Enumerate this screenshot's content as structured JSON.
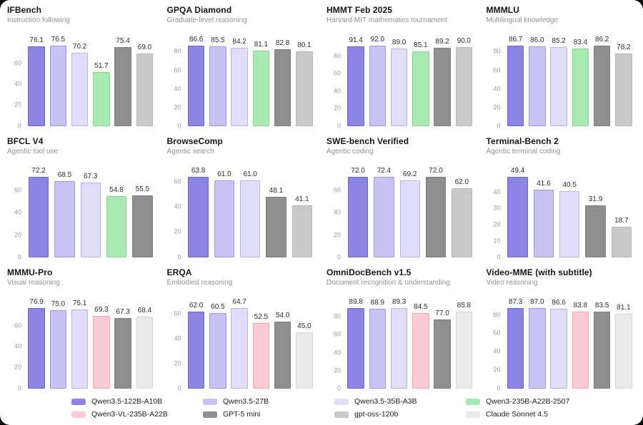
{
  "page": {
    "background": "#000000",
    "canvas_background": "#ffffff"
  },
  "palette": {
    "qwen35-122b": {
      "fill": "#8a84e3",
      "border": "#6f68d4"
    },
    "qwen35-27b": {
      "fill": "#c7c3f2",
      "border": "#9d96e9"
    },
    "qwen35-35b": {
      "fill": "#dfddf8",
      "border": "#b9b3ef"
    },
    "qwen3-2507": {
      "fill": "#a7e9b1",
      "border": "#83da93"
    },
    "qwen3-vl": {
      "fill": "#fbcad3",
      "border": "#f3a8b7"
    },
    "gpt5-mini": {
      "fill": "#8f8f8f",
      "border": "#7e7e7e"
    },
    "gpt-oss-120b": {
      "fill": "#c9c9c9",
      "border": "#b7b7b7"
    },
    "claude-sonnet": {
      "fill": "#eaeaea",
      "border": "#d6d6d6"
    }
  },
  "legend": {
    "items": [
      {
        "label": "Qwen3.5-122B-A10B",
        "color": "qwen35-122b"
      },
      {
        "label": "Qwen3.5-27B",
        "color": "qwen35-27b"
      },
      {
        "label": "Qwen3.5-35B-A3B",
        "color": "qwen35-35b"
      },
      {
        "label": "Qwen3-235B-A22B-2507",
        "color": "qwen3-2507"
      },
      {
        "label": "Qwen3-VL-235B-A22B",
        "color": "qwen3-vl"
      },
      {
        "label": "GPT-5 mini",
        "color": "gpt5-mini"
      },
      {
        "label": "gpt-oss-120b",
        "color": "gpt-oss-120b"
      },
      {
        "label": "Claude Sonnet 4.5",
        "color": "claude-sonnet"
      }
    ]
  },
  "chart_data": [
    {
      "type": "bar",
      "slug": "ifbench",
      "title": "IFBench",
      "subtitle": "Instruction following",
      "ylim": 83,
      "yticks": [
        "0",
        "20",
        "40",
        "60"
      ],
      "ytick_values": [
        0,
        20,
        40,
        60
      ],
      "bars": [
        {
          "model": "Qwen3.5-122B-A10B",
          "color": "qwen35-122b",
          "value": 76.1,
          "label": "76.1"
        },
        {
          "model": "Qwen3.5-27B",
          "color": "qwen35-27b",
          "value": 76.5,
          "label": "76.5"
        },
        {
          "model": "Qwen3.5-35B-A3B",
          "color": "qwen35-35b",
          "value": 70.2,
          "label": "70.2"
        },
        {
          "model": "Qwen3-235B-A22B-2507",
          "color": "qwen3-2507",
          "value": 51.7,
          "label": "51.7"
        },
        {
          "model": "GPT-5 mini",
          "color": "gpt5-mini",
          "value": 75.4,
          "label": "75.4"
        },
        {
          "model": "gpt-oss-120b",
          "color": "gpt-oss-120b",
          "value": 69.0,
          "label": "69.0"
        }
      ]
    },
    {
      "type": "bar",
      "slug": "gpqa-diamond",
      "title": "GPQA Diamond",
      "subtitle": "Graduate-level reasoning",
      "ylim": 93.5,
      "yticks": [
        "0",
        "20",
        "40",
        "60",
        "80"
      ],
      "ytick_values": [
        0,
        20,
        40,
        60,
        80
      ],
      "bars": [
        {
          "model": "Qwen3.5-122B-A10B",
          "color": "qwen35-122b",
          "value": 86.6,
          "label": "86.6"
        },
        {
          "model": "Qwen3.5-27B",
          "color": "qwen35-27b",
          "value": 85.5,
          "label": "85.5"
        },
        {
          "model": "Qwen3.5-35B-A3B",
          "color": "qwen35-35b",
          "value": 84.2,
          "label": "84.2"
        },
        {
          "model": "Qwen3-235B-A22B-2507",
          "color": "qwen3-2507",
          "value": 81.1,
          "label": "81.1"
        },
        {
          "model": "GPT-5 mini",
          "color": "gpt5-mini",
          "value": 82.8,
          "label": "82.8"
        },
        {
          "model": "gpt-oss-120b",
          "color": "gpt-oss-120b",
          "value": 80.1,
          "label": "80.1"
        }
      ]
    },
    {
      "type": "bar",
      "slug": "hmmt-feb-2025",
      "title": "HMMT Feb 2025",
      "subtitle": "Harvard-MIT mathematics tournament",
      "ylim": 99.5,
      "yticks": [
        "0",
        "20",
        "40",
        "60",
        "80"
      ],
      "ytick_values": [
        0,
        20,
        40,
        60,
        80
      ],
      "bars": [
        {
          "model": "Qwen3.5-122B-A10B",
          "color": "qwen35-122b",
          "value": 91.4,
          "label": "91.4"
        },
        {
          "model": "Qwen3.5-27B",
          "color": "qwen35-27b",
          "value": 92.0,
          "label": "92.0"
        },
        {
          "model": "Qwen3.5-35B-A3B",
          "color": "qwen35-35b",
          "value": 89.0,
          "label": "89.0"
        },
        {
          "model": "Qwen3-235B-A22B-2507",
          "color": "qwen3-2507",
          "value": 85.1,
          "label": "85.1"
        },
        {
          "model": "GPT-5 mini",
          "color": "gpt5-mini",
          "value": 89.2,
          "label": "89.2"
        },
        {
          "model": "gpt-oss-120b",
          "color": "gpt-oss-120b",
          "value": 90.0,
          "label": "90.0"
        }
      ]
    },
    {
      "type": "bar",
      "slug": "mmmlu",
      "title": "MMMLU",
      "subtitle": "Multilingual knowledge",
      "ylim": 93.5,
      "yticks": [
        "0",
        "20",
        "40",
        "60",
        "80"
      ],
      "ytick_values": [
        0,
        20,
        40,
        60,
        80
      ],
      "bars": [
        {
          "model": "Qwen3.5-122B-A10B",
          "color": "qwen35-122b",
          "value": 86.7,
          "label": "86.7"
        },
        {
          "model": "Qwen3.5-27B",
          "color": "qwen35-27b",
          "value": 86.0,
          "label": "86.0"
        },
        {
          "model": "Qwen3.5-35B-A3B",
          "color": "qwen35-35b",
          "value": 85.2,
          "label": "85.2"
        },
        {
          "model": "Qwen3-235B-A22B-2507",
          "color": "qwen3-2507",
          "value": 83.4,
          "label": "83.4"
        },
        {
          "model": "GPT-5 mini",
          "color": "gpt5-mini",
          "value": 86.2,
          "label": "86.2"
        },
        {
          "model": "gpt-oss-120b",
          "color": "gpt-oss-120b",
          "value": 78.2,
          "label": "78.2"
        }
      ]
    },
    {
      "type": "bar",
      "slug": "bfcl-v4",
      "title": "BFCL V4",
      "subtitle": "Agentic tool use",
      "ylim": 78,
      "yticks": [
        "0",
        "20",
        "40",
        "60"
      ],
      "ytick_values": [
        0,
        20,
        40,
        60
      ],
      "bars": [
        {
          "model": "Qwen3.5-122B-A10B",
          "color": "qwen35-122b",
          "value": 72.2,
          "label": "72.2"
        },
        {
          "model": "Qwen3.5-27B",
          "color": "qwen35-27b",
          "value": 68.5,
          "label": "68.5"
        },
        {
          "model": "Qwen3.5-35B-A3B",
          "color": "qwen35-35b",
          "value": 67.3,
          "label": "67.3"
        },
        {
          "model": "Qwen3-235B-A22B-2507",
          "color": "qwen3-2507",
          "value": 54.8,
          "label": "54.8"
        },
        {
          "model": "GPT-5 mini",
          "color": "gpt5-mini",
          "value": 55.5,
          "label": "55.5"
        }
      ]
    },
    {
      "type": "bar",
      "slug": "browsecomp",
      "title": "BrowseComp",
      "subtitle": "Agentic search",
      "ylim": 69,
      "yticks": [
        "0",
        "20",
        "40",
        "60"
      ],
      "ytick_values": [
        0,
        20,
        40,
        60
      ],
      "bars": [
        {
          "model": "Qwen3.5-122B-A10B",
          "color": "qwen35-122b",
          "value": 63.8,
          "label": "63.8"
        },
        {
          "model": "Qwen3.5-27B",
          "color": "qwen35-27b",
          "value": 61.0,
          "label": "61.0"
        },
        {
          "model": "Qwen3.5-35B-A3B",
          "color": "qwen35-35b",
          "value": 61.0,
          "label": "61.0"
        },
        {
          "model": "GPT-5 mini",
          "color": "gpt5-mini",
          "value": 48.1,
          "label": "48.1"
        },
        {
          "model": "gpt-oss-120b",
          "color": "gpt-oss-120b",
          "value": 41.1,
          "label": "41.1"
        }
      ]
    },
    {
      "type": "bar",
      "slug": "swe-bench-verified",
      "title": "SWE-bench Verified",
      "subtitle": "Agentic coding",
      "ylim": 78.2,
      "yticks": [
        "0",
        "20",
        "40",
        "60"
      ],
      "ytick_values": [
        0,
        20,
        40,
        60
      ],
      "bars": [
        {
          "model": "Qwen3.5-122B-A10B",
          "color": "qwen35-122b",
          "value": 72.0,
          "label": "72.0"
        },
        {
          "model": "Qwen3.5-27B",
          "color": "qwen35-27b",
          "value": 72.4,
          "label": "72.4"
        },
        {
          "model": "Qwen3.5-35B-A3B",
          "color": "qwen35-35b",
          "value": 69.2,
          "label": "69.2"
        },
        {
          "model": "GPT-5 mini",
          "color": "gpt5-mini",
          "value": 72.0,
          "label": "72.0"
        },
        {
          "model": "gpt-oss-120b",
          "color": "gpt-oss-120b",
          "value": 62.0,
          "label": "62.0"
        }
      ]
    },
    {
      "type": "bar",
      "slug": "terminal-bench-2",
      "title": "Terminal-Bench 2",
      "subtitle": "Agentic terminal coding",
      "ylim": 53.5,
      "yticks": [
        "0",
        "10",
        "20",
        "30",
        "40"
      ],
      "ytick_values": [
        0,
        10,
        20,
        30,
        40
      ],
      "bars": [
        {
          "model": "Qwen3.5-122B-A10B",
          "color": "qwen35-122b",
          "value": 49.4,
          "label": "49.4"
        },
        {
          "model": "Qwen3.5-27B",
          "color": "qwen35-27b",
          "value": 41.6,
          "label": "41.6"
        },
        {
          "model": "Qwen3.5-35B-A3B",
          "color": "qwen35-35b",
          "value": 40.5,
          "label": "40.5"
        },
        {
          "model": "GPT-5 mini",
          "color": "gpt5-mini",
          "value": 31.9,
          "label": "31.9"
        },
        {
          "model": "gpt-oss-120b",
          "color": "gpt-oss-120b",
          "value": 18.7,
          "label": "18.7"
        }
      ]
    },
    {
      "type": "bar",
      "slug": "mmmu-pro",
      "title": "MMMU-Pro",
      "subtitle": "Visual reasoning",
      "ylim": 83,
      "yticks": [
        "0",
        "20",
        "40",
        "60"
      ],
      "ytick_values": [
        0,
        20,
        40,
        60
      ],
      "bars": [
        {
          "model": "Qwen3.5-122B-A10B",
          "color": "qwen35-122b",
          "value": 76.9,
          "label": "76.9"
        },
        {
          "model": "Qwen3.5-27B",
          "color": "qwen35-27b",
          "value": 75.0,
          "label": "75.0"
        },
        {
          "model": "Qwen3.5-35B-A3B",
          "color": "qwen35-35b",
          "value": 75.1,
          "label": "75.1"
        },
        {
          "model": "Qwen3-VL-235B-A22B",
          "color": "qwen3-vl",
          "value": 69.3,
          "label": "69.3"
        },
        {
          "model": "GPT-5 mini",
          "color": "gpt5-mini",
          "value": 67.3,
          "label": "67.3"
        },
        {
          "model": "Claude Sonnet 4.5",
          "color": "claude-sonnet",
          "value": 68.4,
          "label": "68.4"
        }
      ]
    },
    {
      "type": "bar",
      "slug": "erqa",
      "title": "ERQA",
      "subtitle": "Embodied reasoning",
      "ylim": 70,
      "yticks": [
        "0",
        "20",
        "40",
        "60"
      ],
      "ytick_values": [
        0,
        20,
        40,
        60
      ],
      "bars": [
        {
          "model": "Qwen3.5-122B-A10B",
          "color": "qwen35-122b",
          "value": 62.0,
          "label": "62.0"
        },
        {
          "model": "Qwen3.5-27B",
          "color": "qwen35-27b",
          "value": 60.5,
          "label": "60.5"
        },
        {
          "model": "Qwen3.5-35B-A3B",
          "color": "qwen35-35b",
          "value": 64.7,
          "label": "64.7"
        },
        {
          "model": "Qwen3-VL-235B-A22B",
          "color": "qwen3-vl",
          "value": 52.5,
          "label": "52.5"
        },
        {
          "model": "GPT-5 mini",
          "color": "gpt5-mini",
          "value": 54.0,
          "label": "54.0"
        },
        {
          "model": "Claude Sonnet 4.5",
          "color": "claude-sonnet",
          "value": 45.0,
          "label": "45.0"
        }
      ]
    },
    {
      "type": "bar",
      "slug": "omnidocbench-v1-5",
      "title": "OmniDocBench v1.5",
      "subtitle": "Document recognition & understanding",
      "ylim": 97,
      "yticks": [
        "0",
        "20",
        "40",
        "60",
        "80"
      ],
      "ytick_values": [
        0,
        20,
        40,
        60,
        80
      ],
      "bars": [
        {
          "model": "Qwen3.5-122B-A10B",
          "color": "qwen35-122b",
          "value": 89.8,
          "label": "89.8"
        },
        {
          "model": "Qwen3.5-27B",
          "color": "qwen35-27b",
          "value": 88.9,
          "label": "88.9"
        },
        {
          "model": "Qwen3.5-35B-A3B",
          "color": "qwen35-35b",
          "value": 89.3,
          "label": "89.3"
        },
        {
          "model": "Qwen3-VL-235B-A22B",
          "color": "qwen3-vl",
          "value": 84.5,
          "label": "84.5"
        },
        {
          "model": "GPT-5 mini",
          "color": "gpt5-mini",
          "value": 77.0,
          "label": "77.0"
        },
        {
          "model": "Claude Sonnet 4.5",
          "color": "claude-sonnet",
          "value": 85.8,
          "label": "85.8"
        }
      ]
    },
    {
      "type": "bar",
      "slug": "video-mme",
      "title": "Video-MME (with subtitle)",
      "subtitle": "Video reasoning",
      "ylim": 94.5,
      "yticks": [
        "0",
        "20",
        "40",
        "60",
        "80"
      ],
      "ytick_values": [
        0,
        20,
        40,
        60,
        80
      ],
      "bars": [
        {
          "model": "Qwen3.5-122B-A10B",
          "color": "qwen35-122b",
          "value": 87.3,
          "label": "87.3"
        },
        {
          "model": "Qwen3.5-27B",
          "color": "qwen35-27b",
          "value": 87.0,
          "label": "87.0"
        },
        {
          "model": "Qwen3.5-35B-A3B",
          "color": "qwen35-35b",
          "value": 86.6,
          "label": "86.6"
        },
        {
          "model": "Qwen3-VL-235B-A22B",
          "color": "qwen3-vl",
          "value": 83.8,
          "label": "83.8"
        },
        {
          "model": "GPT-5 mini",
          "color": "gpt5-mini",
          "value": 83.5,
          "label": "83.5"
        },
        {
          "model": "Claude Sonnet 4.5",
          "color": "claude-sonnet",
          "value": 81.1,
          "label": "81.1"
        }
      ]
    }
  ]
}
